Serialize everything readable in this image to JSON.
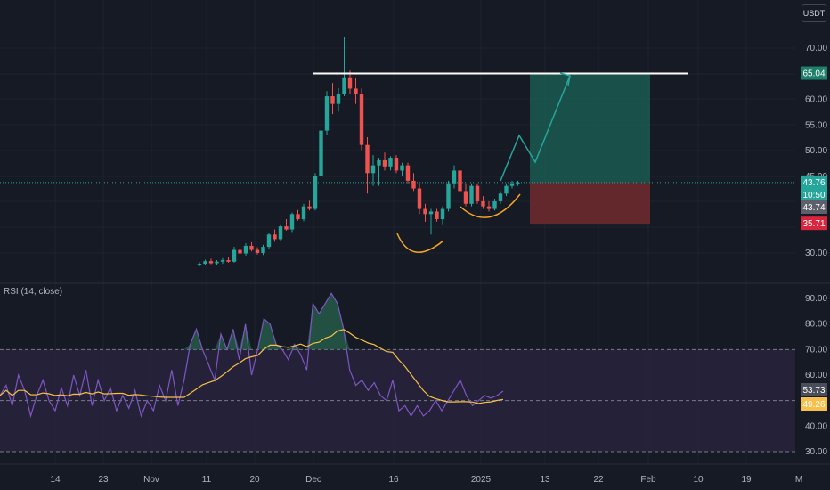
{
  "currency": "USDT",
  "rsi_title": "RSI (14, close)",
  "colors": {
    "background": "#161a25",
    "up": "#26a69a",
    "down": "#ef5350",
    "resistance": "#ffffff",
    "target_zone": "#1b5a51",
    "stop_zone": "#6b2a2e",
    "arrow": "#26a69a",
    "pattern": "#f5a623",
    "rsi_line": "#7e57c2",
    "rsi_ma": "#f7c04a",
    "rsi_band": "#2b2540"
  },
  "x_ticks": [
    "14",
    "23",
    "Nov",
    "11",
    "20",
    "Dec",
    "16",
    "2025",
    "13",
    "22",
    "Feb",
    "10",
    "19",
    "M"
  ],
  "price_ticks": [
    "70.00",
    "60.00",
    "55.00",
    "50.00",
    "45.00",
    "30.00"
  ],
  "price_tags": {
    "target": "65.04",
    "current": "43.76",
    "countdown": "10:50",
    "prev_close": "43.74",
    "stop": "35.71"
  },
  "rsi_ticks": [
    "90.00",
    "80.00",
    "70.00",
    "60.00",
    "40.00",
    "30.00"
  ],
  "rsi_tags": {
    "rsi": "53.73",
    "ma": "49.26"
  },
  "chart_data": [
    {
      "type": "candlestick",
      "ylim": [
        27.5,
        73
      ],
      "resistance_level": 65.04,
      "target_level": 65.04,
      "entry_level": 43.76,
      "stop_level": 35.71,
      "candles": [
        {
          "o": 27.6,
          "h": 28.2,
          "l": 27.4,
          "c": 27.9
        },
        {
          "o": 27.9,
          "h": 28.7,
          "l": 27.6,
          "c": 28.4
        },
        {
          "o": 28.4,
          "h": 28.9,
          "l": 27.8,
          "c": 28.0
        },
        {
          "o": 28.0,
          "h": 28.6,
          "l": 27.6,
          "c": 28.3
        },
        {
          "o": 28.3,
          "h": 29.0,
          "l": 27.9,
          "c": 28.6
        },
        {
          "o": 28.6,
          "h": 29.2,
          "l": 28.1,
          "c": 28.3
        },
        {
          "o": 28.3,
          "h": 31.2,
          "l": 28.1,
          "c": 30.6
        },
        {
          "o": 30.6,
          "h": 31.6,
          "l": 29.6,
          "c": 29.9
        },
        {
          "o": 29.9,
          "h": 31.9,
          "l": 29.5,
          "c": 31.4
        },
        {
          "o": 31.4,
          "h": 32.1,
          "l": 30.3,
          "c": 30.6
        },
        {
          "o": 30.6,
          "h": 31.1,
          "l": 29.7,
          "c": 30.0
        },
        {
          "o": 30.0,
          "h": 31.6,
          "l": 29.6,
          "c": 31.2
        },
        {
          "o": 31.2,
          "h": 34.0,
          "l": 30.9,
          "c": 33.6
        },
        {
          "o": 33.6,
          "h": 34.6,
          "l": 32.2,
          "c": 32.7
        },
        {
          "o": 32.7,
          "h": 35.6,
          "l": 32.4,
          "c": 35.2
        },
        {
          "o": 35.2,
          "h": 36.6,
          "l": 34.4,
          "c": 34.6
        },
        {
          "o": 34.6,
          "h": 37.9,
          "l": 34.1,
          "c": 37.6
        },
        {
          "o": 37.6,
          "h": 38.4,
          "l": 36.3,
          "c": 36.6
        },
        {
          "o": 36.6,
          "h": 39.6,
          "l": 36.2,
          "c": 39.1
        },
        {
          "o": 39.1,
          "h": 40.2,
          "l": 38.3,
          "c": 38.6
        },
        {
          "o": 38.6,
          "h": 45.6,
          "l": 38.3,
          "c": 45.1
        },
        {
          "o": 45.1,
          "h": 54.6,
          "l": 44.6,
          "c": 53.9
        },
        {
          "o": 53.9,
          "h": 61.6,
          "l": 53.1,
          "c": 60.6
        },
        {
          "o": 60.6,
          "h": 63.2,
          "l": 57.1,
          "c": 59.1
        },
        {
          "o": 59.1,
          "h": 62.2,
          "l": 57.6,
          "c": 61.1
        },
        {
          "o": 61.1,
          "h": 72.1,
          "l": 60.6,
          "c": 64.3
        },
        {
          "o": 64.3,
          "h": 65.6,
          "l": 61.1,
          "c": 62.1
        },
        {
          "o": 62.1,
          "h": 64.1,
          "l": 59.1,
          "c": 61.1
        },
        {
          "o": 61.1,
          "h": 62.1,
          "l": 50.1,
          "c": 51.1
        },
        {
          "o": 51.1,
          "h": 52.6,
          "l": 41.6,
          "c": 45.6
        },
        {
          "o": 45.6,
          "h": 49.1,
          "l": 43.1,
          "c": 47.1
        },
        {
          "o": 47.1,
          "h": 48.6,
          "l": 43.1,
          "c": 48.1
        },
        {
          "o": 48.1,
          "h": 49.6,
          "l": 46.1,
          "c": 46.9
        },
        {
          "o": 46.9,
          "h": 48.9,
          "l": 46.1,
          "c": 48.6
        },
        {
          "o": 48.6,
          "h": 49.1,
          "l": 45.6,
          "c": 46.1
        },
        {
          "o": 46.1,
          "h": 47.6,
          "l": 45.1,
          "c": 47.1
        },
        {
          "o": 47.1,
          "h": 47.6,
          "l": 43.6,
          "c": 44.1
        },
        {
          "o": 44.1,
          "h": 45.6,
          "l": 42.1,
          "c": 42.6
        },
        {
          "o": 42.6,
          "h": 43.6,
          "l": 37.6,
          "c": 38.6
        },
        {
          "o": 38.6,
          "h": 39.6,
          "l": 36.1,
          "c": 37.6
        },
        {
          "o": 37.6,
          "h": 38.6,
          "l": 33.6,
          "c": 38.1
        },
        {
          "o": 38.1,
          "h": 38.6,
          "l": 36.1,
          "c": 36.6
        },
        {
          "o": 36.6,
          "h": 39.1,
          "l": 35.6,
          "c": 38.6
        },
        {
          "o": 38.6,
          "h": 44.1,
          "l": 38.1,
          "c": 43.6
        },
        {
          "o": 43.6,
          "h": 47.1,
          "l": 42.6,
          "c": 46.1
        },
        {
          "o": 46.1,
          "h": 49.6,
          "l": 41.6,
          "c": 42.1
        },
        {
          "o": 42.1,
          "h": 43.6,
          "l": 39.1,
          "c": 39.6
        },
        {
          "o": 39.6,
          "h": 43.6,
          "l": 39.1,
          "c": 43.1
        },
        {
          "o": 43.1,
          "h": 43.6,
          "l": 39.6,
          "c": 40.1
        },
        {
          "o": 40.1,
          "h": 41.1,
          "l": 38.6,
          "c": 39.1
        },
        {
          "o": 39.1,
          "h": 40.1,
          "l": 38.1,
          "c": 38.6
        },
        {
          "o": 38.6,
          "h": 40.6,
          "l": 38.3,
          "c": 40.1
        },
        {
          "o": 40.1,
          "h": 42.1,
          "l": 39.6,
          "c": 41.6
        },
        {
          "o": 41.6,
          "h": 43.6,
          "l": 41.1,
          "c": 43.1
        },
        {
          "o": 43.1,
          "h": 44.1,
          "l": 42.6,
          "c": 43.6
        },
        {
          "o": 43.6,
          "h": 44.1,
          "l": 43.1,
          "c": 43.76
        }
      ]
    },
    {
      "type": "line",
      "title": "RSI (14, close)",
      "ylim": [
        29,
        94
      ],
      "bands": [
        70,
        50,
        30
      ],
      "series": [
        {
          "name": "RSI (14, close)",
          "values": [
            52,
            56,
            48,
            60,
            54,
            44,
            52,
            58,
            50,
            46,
            55,
            48,
            60,
            52,
            62,
            48,
            58,
            50,
            55,
            46,
            52,
            47,
            54,
            44,
            50,
            46,
            56,
            50,
            62,
            48,
            58,
            72,
            78,
            70,
            64,
            58,
            76,
            70,
            78,
            66,
            80,
            60,
            70,
            82,
            80,
            72,
            70,
            66,
            72,
            68,
            62,
            88,
            84,
            88,
            92,
            88,
            78,
            62,
            56,
            58,
            54,
            57,
            52,
            50,
            58,
            46,
            48,
            44,
            48,
            44,
            46,
            50,
            46,
            50,
            54,
            58,
            52,
            48,
            50,
            52,
            51,
            52,
            53.73
          ]
        },
        {
          "name": "MA",
          "values": [
            49.26
          ]
        }
      ]
    }
  ]
}
